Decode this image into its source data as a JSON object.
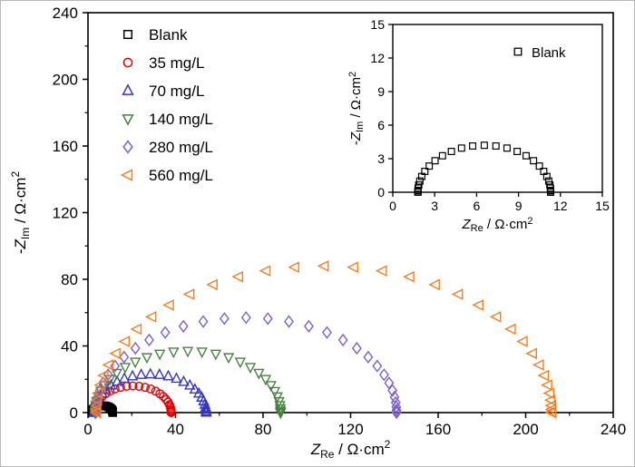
{
  "chart_data": {
    "type": "scatter",
    "chart_kind": "nyquist-eis-impedance",
    "title": "",
    "axes": {
      "x": {
        "label_prefix": "",
        "label_var": "Z",
        "label_sub": "Re",
        "label_unit": " / Ω·cm",
        "label_exp": "2",
        "lim": [
          0,
          240
        ],
        "ticks": [
          0,
          40,
          80,
          120,
          160,
          200,
          240
        ],
        "minor_step": 20
      },
      "y": {
        "label_prefix": "-",
        "label_var": "Z",
        "label_sub": "Im",
        "label_unit": " / Ω·cm",
        "label_exp": "2",
        "lim": [
          0,
          240
        ],
        "ticks": [
          0,
          40,
          80,
          120,
          160,
          200,
          240
        ],
        "minor_step": 20
      }
    },
    "series": [
      {
        "name": "Blank",
        "marker": "square",
        "color": "#000000",
        "n_points": 25,
        "semicircle": {
          "x_start": 1.8,
          "x_end": 11.3,
          "y_peak": 4.2
        }
      },
      {
        "name": "35 mg/L",
        "marker": "circle",
        "color": "#e00000",
        "n_points": 31,
        "semicircle": {
          "x_start": 3.0,
          "x_end": 38.0,
          "y_peak": 16.0
        }
      },
      {
        "name": "70 mg/L",
        "marker": "triangle-up",
        "color": "#3535c8",
        "n_points": 31,
        "semicircle": {
          "x_start": 3.0,
          "x_end": 54.0,
          "y_peak": 23.0
        }
      },
      {
        "name": "140 mg/L",
        "marker": "triangle-down",
        "color": "#4a8142",
        "n_points": 33,
        "semicircle": {
          "x_start": 3.2,
          "x_end": 88.0,
          "y_peak": 37.0
        }
      },
      {
        "name": "280 mg/L",
        "marker": "diamond",
        "color": "#7e60c8",
        "n_points": 35,
        "semicircle": {
          "x_start": 3.5,
          "x_end": 141.0,
          "y_peak": 57.0
        }
      },
      {
        "name": "560 mg/L",
        "marker": "triangle-left",
        "color": "#f57d1d",
        "n_points": 39,
        "semicircle": {
          "x_start": 4.0,
          "x_end": 212.0,
          "y_peak": 88.0
        }
      }
    ],
    "legend": {
      "position": "top-left",
      "items": [
        "Blank",
        "35 mg/L",
        "70 mg/L",
        "140 mg/L",
        "280 mg/L",
        "560 mg/L"
      ]
    },
    "inset": {
      "axes": {
        "x": {
          "lim": [
            0,
            15
          ],
          "ticks": [
            0,
            3,
            6,
            9,
            12,
            15
          ]
        },
        "y": {
          "lim": [
            0,
            15
          ],
          "ticks": [
            0,
            3,
            6,
            9,
            12,
            15
          ]
        }
      },
      "series_shown": [
        "Blank"
      ],
      "legend_label": "Blank",
      "legend_position": "top-right"
    }
  }
}
